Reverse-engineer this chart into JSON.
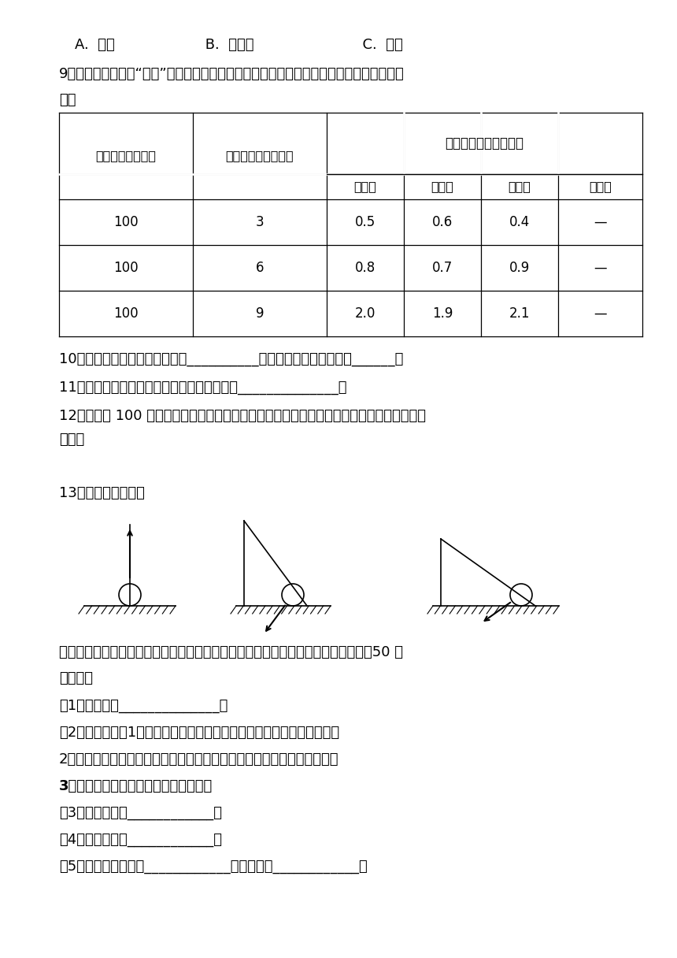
{
  "bg_color": "#ffffff",
  "text_color": "#000000",
  "line1": "A.  重力                    B.  反冲力                        C.  弹力",
  "q9_text": "9．该同学继续探究“火箭”发射高度与什么因素有关，下表是其中一组实验数据，请补充完",
  "q9_text2": "整。",
  "table_col0": "白醉的量（毫升）",
  "table_col1": "小苏打的量（毫升）",
  "table_merged": "火箭发射的高度（米）",
  "table_sub1": "第一次",
  "table_sub2": "第二次",
  "table_sub3": "第三次",
  "table_sub4": "平均値",
  "table_data": [
    [
      "100",
      "3",
      "0.5",
      "0.6",
      "0.4",
      "—"
    ],
    [
      "100",
      "6",
      "0.8",
      "0.7",
      "0.9",
      "—"
    ],
    [
      "100",
      "9",
      "2.0",
      "1.9",
      "2.1",
      "—"
    ]
  ],
  "q10": "10．这组实验设计研究的问题是__________实验中需要改变的条件是______。",
  "q11": "11．分析以上数据，该同学能得出怎样的结论______________。",
  "q12a": "12．假如在 100 毫升的白醉中加更多的小苏打，你觉得火箭发射的高度会无限的变化吗？为",
  "q12b": "什么？",
  "q13": "13．斜面作用的研究",
  "explore_text1": "探究器材：三块光滑程度一样、长短不同的木板；三个高度相同的支撑物；测力计，50 克",
  "explore_text2": "的重物。",
  "q_guess": "（1）我的猜想______________。",
  "q_process_title": "（2）实验过程：1．将重物直接提升到一定的高度，记下测力计的读数。",
  "q_process2": "2．将重物沿不同坡度的斜面分别提升到相同的高度，记下测力计的读数。",
  "q_process3": "3．重复几次，观察分析收集到的数据。",
  "q_obs": "（3）实验现象：____________。",
  "q_conc": "（4）实验结论：____________。",
  "q_const": "（5）本实验中不变是____________。变化的是____________。"
}
